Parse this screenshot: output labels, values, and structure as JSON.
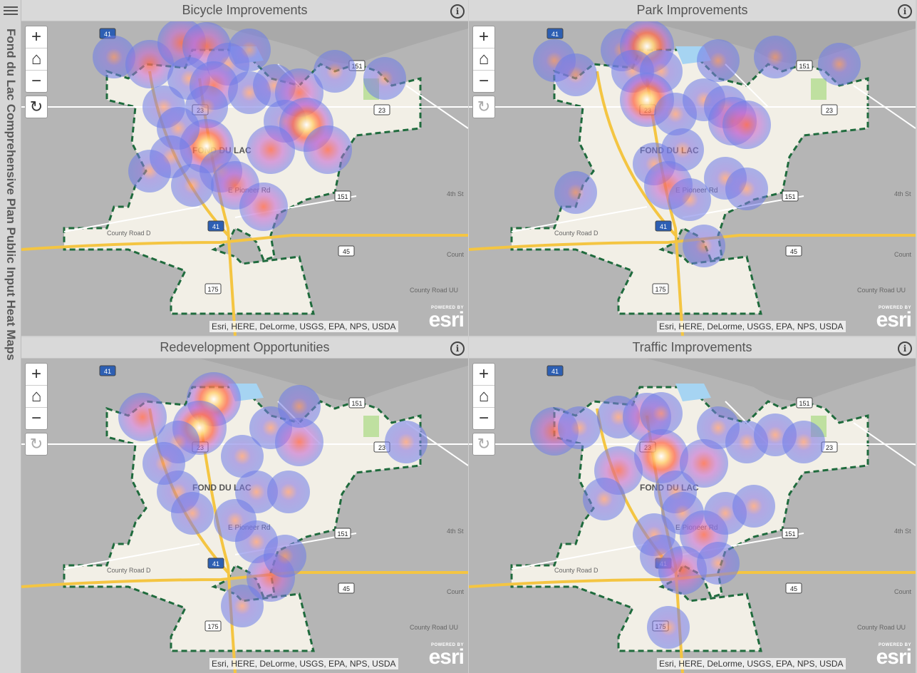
{
  "app": {
    "title": "Fond du Lac Comprehensive Plan Public Input Heat Maps"
  },
  "icons": {
    "menu": "hamburger-menu-icon",
    "info": "info-icon",
    "home": "home-icon",
    "refresh": "refresh-icon",
    "zoom_in": "plus-icon",
    "zoom_out": "minus-icon"
  },
  "controls": {
    "zoom_in": "+",
    "zoom_out": "−",
    "home": "⌂",
    "refresh": "↻"
  },
  "map": {
    "attribution": "Esri, HERE, DeLorme, USGS, EPA, NPS, USDA",
    "powered_by": "POWERED BY",
    "esri": "esri",
    "city_label": "FOND DU LAC",
    "road_labels": {
      "pioneer": "E Pioneer Rd",
      "county_d": "County Road D",
      "county_uu": "County Road UU",
      "fourth": "4th St",
      "county": "Count"
    },
    "shields": {
      "i41": "41",
      "us151": "151",
      "hwy23": "23",
      "hwy45": "45",
      "hwy175": "175"
    }
  },
  "panels": [
    {
      "title": "Bicycle Improvements",
      "refresh_active": true
    },
    {
      "title": "Park Improvements",
      "refresh_active": false
    },
    {
      "title": "Redevelopment Opportunities",
      "refresh_active": false
    },
    {
      "title": "Traffic Improvements",
      "refresh_active": false
    }
  ]
}
